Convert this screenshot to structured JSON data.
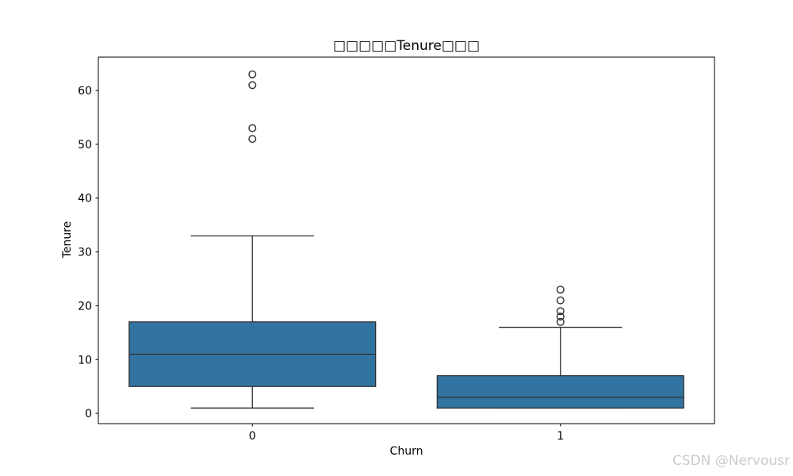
{
  "watermark": {
    "text": "CSDN @Nervousr"
  },
  "chart_data": {
    "type": "boxplot",
    "title": "□□□□□Tenure□□□",
    "xlabel": "Churn",
    "ylabel": "Tenure",
    "categories": [
      "0",
      "1"
    ],
    "yticks": [
      0,
      10,
      20,
      30,
      40,
      50,
      60
    ],
    "ylim": [
      -1.9,
      66.2
    ],
    "xlim": [
      -0.5,
      1.5
    ],
    "box_width": 0.8,
    "cap_width": 0.4,
    "grid": false,
    "legend": "none",
    "series": [
      {
        "category": "0",
        "x": 0,
        "q1": 5,
        "median": 11,
        "q3": 17,
        "whisker_low": 1,
        "whisker_high": 33,
        "outliers": [
          51,
          53,
          61,
          63
        ]
      },
      {
        "category": "1",
        "x": 1,
        "q1": 1,
        "median": 3,
        "q3": 7,
        "whisker_low": 1,
        "whisker_high": 16,
        "outliers": [
          17,
          18,
          19,
          21,
          23
        ]
      }
    ],
    "colors": {
      "box_fill": "#3274a1",
      "box_edge": "#2e2e2e",
      "line_color": "#2e2e2e",
      "flier_edge": "#2e2e2e",
      "spine": "#000000",
      "background": "#ffffff"
    }
  }
}
